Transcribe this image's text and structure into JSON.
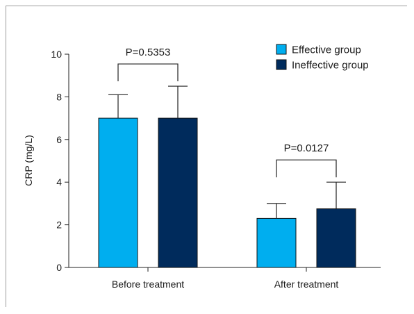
{
  "chart_data": {
    "type": "bar",
    "ylabel": "CRP (mg/L)",
    "ylim": [
      0,
      10
    ],
    "yticks": [
      "0",
      "2",
      "4",
      "6",
      "8",
      "10"
    ],
    "categories": [
      "Before treatment",
      "After treatment"
    ],
    "series": [
      {
        "name": "Effective group",
        "color": "#00aeef",
        "values": [
          7.0,
          2.3
        ],
        "errors": [
          1.1,
          0.7
        ]
      },
      {
        "name": "Ineffective group",
        "color": "#002b5c",
        "values": [
          7.0,
          2.75
        ],
        "errors": [
          1.5,
          1.25
        ]
      }
    ],
    "annotations": [
      {
        "text": "P=0.5353",
        "category": 0
      },
      {
        "text": "P=0.0127",
        "category": 1
      }
    ],
    "legend": "top-right",
    "grid": false
  }
}
